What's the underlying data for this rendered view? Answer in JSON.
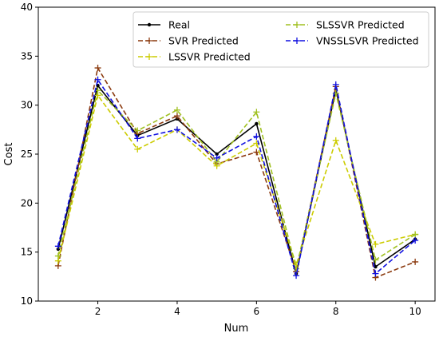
{
  "chart_data": {
    "type": "line",
    "title": "",
    "xlabel": "Num",
    "ylabel": "Cost",
    "xlim": [
      0.5,
      10.5
    ],
    "ylim": [
      10,
      40
    ],
    "xticks": [
      2,
      4,
      6,
      8,
      10
    ],
    "yticks": [
      10,
      15,
      20,
      25,
      30,
      35,
      40
    ],
    "xtick_labels": [
      "2",
      "4",
      "6",
      "8",
      "10"
    ],
    "ytick_labels": [
      "10",
      "15",
      "20",
      "25",
      "30",
      "35",
      "40"
    ],
    "grid": false,
    "legend_placement": "upper-right",
    "x": [
      1,
      2,
      3,
      4,
      5,
      6,
      7,
      8,
      9,
      10
    ],
    "series": [
      {
        "name": "Real",
        "color": "#000000",
        "style": "solid",
        "marker": "dot",
        "values": [
          15.3,
          32.0,
          26.9,
          28.6,
          25.0,
          28.1,
          12.8,
          31.6,
          13.5,
          16.3
        ]
      },
      {
        "name": "SVR Predicted",
        "color": "#8b3a0f",
        "style": "dashed",
        "marker": "plus",
        "values": [
          13.6,
          33.8,
          27.1,
          28.9,
          24.0,
          25.2,
          13.0,
          31.9,
          12.4,
          14.0
        ]
      },
      {
        "name": "LSSVR Predicted",
        "color": "#cccc00",
        "style": "dashed",
        "marker": "plus",
        "values": [
          14.1,
          31.0,
          25.5,
          27.5,
          23.8,
          26.1,
          13.7,
          26.4,
          15.8,
          16.8
        ]
      },
      {
        "name": "SLSSVR Predicted",
        "color": "#a0c020",
        "style": "dashed",
        "marker": "plus",
        "values": [
          14.6,
          31.5,
          27.4,
          29.5,
          24.2,
          29.3,
          13.3,
          31.2,
          14.2,
          16.8
        ]
      },
      {
        "name": "VNSSLSVR Predicted",
        "color": "#1010e0",
        "style": "dashed",
        "marker": "plus",
        "values": [
          15.6,
          32.6,
          26.6,
          27.5,
          24.6,
          26.8,
          12.6,
          32.1,
          12.8,
          16.2
        ]
      }
    ]
  }
}
